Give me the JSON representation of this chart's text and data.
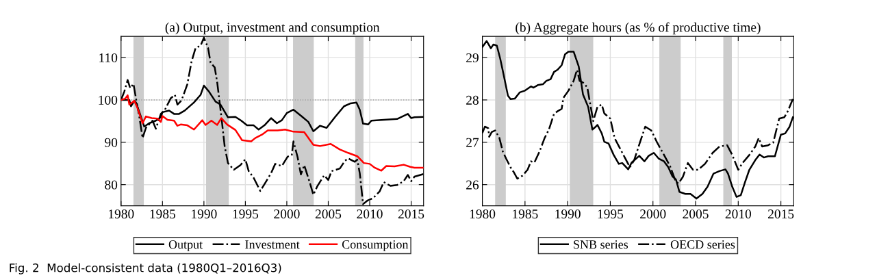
{
  "chart_data": [
    {
      "type": "line",
      "title": "(a) Output, investment and consumption",
      "xlim": [
        1980,
        2016.5
      ],
      "ylim": [
        75,
        115
      ],
      "xticks": [
        1980,
        1985,
        1990,
        1995,
        2000,
        2005,
        2010,
        2015
      ],
      "yticks": [
        80,
        90,
        100,
        110
      ],
      "grid": true,
      "legend": "bottom",
      "marker": "none",
      "annotations": [
        "Fig. 2  Model-consistent data (1980Q1–2016Q3)"
      ],
      "ref_lines": [
        {
          "axis": "y",
          "value": 100,
          "label": null,
          "color": "#a0a0a0",
          "line_style": "dotted"
        }
      ],
      "bands": [
        {
          "axis": "x",
          "from": 1981.5,
          "to": 1982.75,
          "label": null,
          "color": "#cccccc"
        },
        {
          "axis": "x",
          "from": 1990.25,
          "to": 1993,
          "label": null,
          "color": "#cccccc"
        },
        {
          "axis": "x",
          "from": 2000.75,
          "to": 2003.25,
          "label": null,
          "color": "#cccccc"
        },
        {
          "axis": "x",
          "from": 2008.25,
          "to": 2009.25,
          "label": null,
          "color": "#cccccc"
        }
      ],
      "series": [
        {
          "name": "Output",
          "color": "#000000",
          "line_style": "solid",
          "x": [
            1980,
            1981.0,
            1981.2,
            1981.6,
            1981.8,
            1982.2,
            1982.8,
            1983.4,
            1984.2,
            1984.8,
            1985.0,
            1985.8,
            1986.4,
            1987.0,
            1987.7,
            1988.8,
            1989.6,
            1990.0,
            1990.6,
            1991.4,
            1992.0,
            1992.9,
            1993.8,
            1994.5,
            1995.2,
            1996.0,
            1996.6,
            1997.3,
            1998.1,
            1998.8,
            1999.4,
            2000.0,
            2000.8,
            2001.8,
            2002.6,
            2003.2,
            2004.0,
            2004.8,
            2005.8,
            2006.9,
            2007.7,
            2008.4,
            2008.8,
            2009.2,
            2009.8,
            2010.2,
            2011.7,
            2013.3,
            2014.6,
            2015.0,
            2015.4,
            2016.5
          ],
          "values": [
            100,
            100,
            98.5,
            99.8,
            99.4,
            97.2,
            93.7,
            94.5,
            95.1,
            95.9,
            97.1,
            97.5,
            96.7,
            96.7,
            97.5,
            99.4,
            101.2,
            103.4,
            102.0,
            99.6,
            98.9,
            95.9,
            96.0,
            95.1,
            94.0,
            94.0,
            93.0,
            94.0,
            95.7,
            94.5,
            95.2,
            96.9,
            97.7,
            96.1,
            94.8,
            92.6,
            93.9,
            93.4,
            95.9,
            98.5,
            99.2,
            99.4,
            97.7,
            94.4,
            94.2,
            95.1,
            95.3,
            95.5,
            96.7,
            95.7,
            95.9,
            96.0
          ]
        },
        {
          "name": "Investment",
          "color": "#000000",
          "line_style": "dashdot",
          "x": [
            1980,
            1980.4,
            1980.8,
            1981.1,
            1981.5,
            1981.8,
            1982.2,
            1982.6,
            1983.0,
            1983.8,
            1984.2,
            1984.8,
            1985.3,
            1986.0,
            1986.5,
            1986.8,
            1987.3,
            1988.0,
            1988.5,
            1989.0,
            1989.6,
            1990.0,
            1990.5,
            1990.8,
            1991.3,
            1991.6,
            1992.1,
            1992.5,
            1992.9,
            1993.6,
            1994.4,
            1995.0,
            1995.4,
            1996.0,
            1996.8,
            1997.3,
            1998.1,
            1998.6,
            1999.4,
            2000.1,
            2000.6,
            2000.8,
            2001.3,
            2001.7,
            2002.1,
            2002.8,
            2003.2,
            2003.7,
            2004.5,
            2005.0,
            2005.4,
            2006.4,
            2007.0,
            2007.4,
            2008.2,
            2008.5,
            2008.8,
            2009.2,
            2009.7,
            2010.4,
            2011.2,
            2011.7,
            2012.5,
            2013.3,
            2014.1,
            2014.6,
            2015.0,
            2015.4,
            2016.5
          ],
          "values": [
            100,
            102.0,
            104.7,
            102.8,
            103.8,
            100.4,
            96.1,
            91.0,
            93.4,
            95.1,
            93.2,
            96.7,
            97.7,
            100.4,
            101.2,
            98.9,
            99.9,
            103.7,
            109.0,
            112.3,
            112.8,
            114.7,
            112.3,
            108.8,
            107.7,
            104.2,
            96.1,
            89.1,
            85.1,
            83.5,
            84.6,
            86.0,
            83.2,
            81.6,
            78.5,
            80.1,
            82.7,
            84.9,
            84.4,
            86.6,
            87.0,
            90.2,
            86.5,
            82.4,
            84.6,
            80.3,
            77.6,
            79.7,
            82.2,
            81.1,
            83.2,
            83.8,
            85.6,
            86.2,
            85.4,
            85.9,
            82.7,
            75.4,
            76.2,
            76.8,
            78.4,
            80.6,
            79.7,
            79.9,
            80.8,
            82.3,
            80.8,
            81.9,
            82.5
          ]
        },
        {
          "name": "Consumption",
          "color": "#ff0000",
          "line_style": "solid",
          "x": [
            1980,
            1980.5,
            1980.8,
            1981.0,
            1981.6,
            1982.0,
            1982.6,
            1983.0,
            1983.7,
            1984.4,
            1984.8,
            1985.0,
            1985.6,
            1986.4,
            1986.8,
            1987.2,
            1988.0,
            1988.8,
            1989.8,
            1990.2,
            1990.9,
            1991.6,
            1992.1,
            1992.8,
            1993.8,
            1994.6,
            1995.7,
            1996.2,
            1997.0,
            1997.7,
            1998.9,
            1999.8,
            2000.8,
            2002.1,
            2002.9,
            2003.2,
            2004.0,
            2005.3,
            2006.4,
            2007.4,
            2008.5,
            2009.3,
            2010.0,
            2010.6,
            2011.4,
            2012.0,
            2013.0,
            2014.1,
            2014.9,
            2015.4,
            2016.5
          ],
          "values": [
            100,
            100.3,
            101.1,
            98.9,
            99.8,
            98.0,
            94.5,
            96.1,
            95.7,
            95.6,
            94.8,
            96.2,
            95.3,
            95.1,
            93.9,
            94.2,
            94.0,
            93.0,
            95.2,
            94.1,
            95.1,
            94.1,
            95.7,
            94.2,
            92.9,
            90.5,
            90.2,
            91.0,
            91.8,
            92.8,
            92.8,
            93.0,
            92.5,
            92.4,
            90.2,
            89.4,
            89.1,
            89.6,
            88.3,
            87.5,
            86.7,
            85.1,
            84.9,
            84.0,
            83.3,
            84.4,
            84.3,
            84.7,
            84.2,
            84.0,
            84.0
          ]
        }
      ]
    },
    {
      "type": "line",
      "title": "(b) Aggregate hours (as % of productive time)",
      "xlim": [
        1980,
        2016.5
      ],
      "ylim": [
        25.5,
        29.5
      ],
      "xticks": [
        1980,
        1985,
        1990,
        1995,
        2000,
        2005,
        2010,
        2015
      ],
      "yticks": [
        26,
        27,
        28,
        29
      ],
      "grid": true,
      "legend": "bottom",
      "marker": "none",
      "bands": [
        {
          "axis": "x",
          "from": 1981.5,
          "to": 1982.75,
          "label": null,
          "color": "#cccccc"
        },
        {
          "axis": "x",
          "from": 1990.25,
          "to": 1993,
          "label": null,
          "color": "#cccccc"
        },
        {
          "axis": "x",
          "from": 2000.75,
          "to": 2003.25,
          "label": null,
          "color": "#cccccc"
        },
        {
          "axis": "x",
          "from": 2008.25,
          "to": 2009.25,
          "label": null,
          "color": "#cccccc"
        }
      ],
      "series": [
        {
          "name": "SNB series",
          "color": "#000000",
          "line_style": "solid",
          "x": [
            1980,
            1980.5,
            1981.0,
            1981.3,
            1981.7,
            1982.1,
            1982.5,
            1983.0,
            1983.3,
            1983.8,
            1984.4,
            1985.0,
            1985.7,
            1986.0,
            1986.5,
            1987.1,
            1987.5,
            1988.0,
            1988.4,
            1988.8,
            1989.3,
            1989.7,
            1990.1,
            1990.7,
            1991.3,
            1991.8,
            1992.4,
            1992.9,
            1993.3,
            1993.5,
            1994.0,
            1994.3,
            1994.8,
            1995.4,
            1996.0,
            1996.4,
            1997.1,
            1997.5,
            1998.4,
            1999.0,
            1999.5,
            2000.1,
            2000.7,
            2001.3,
            2001.8,
            2002.3,
            2002.7,
            2003.1,
            2003.8,
            2004.4,
            2005.1,
            2005.8,
            2006.4,
            2007.1,
            2007.8,
            2008.5,
            2008.8,
            2009.3,
            2009.8,
            2010.3,
            2010.8,
            2011.3,
            2012.0,
            2012.5,
            2013.0,
            2013.5,
            2014.3,
            2015.0,
            2015.5,
            2016.0,
            2016.4
          ],
          "values": [
            29.25,
            29.39,
            29.22,
            29.31,
            29.28,
            28.97,
            28.59,
            28.1,
            28.02,
            28.03,
            28.18,
            28.22,
            28.32,
            28.29,
            28.35,
            28.37,
            28.45,
            28.49,
            28.66,
            28.71,
            28.82,
            29.08,
            29.14,
            29.14,
            28.79,
            28.13,
            27.84,
            27.3,
            27.37,
            27.41,
            27.21,
            27.01,
            26.97,
            26.7,
            26.49,
            26.51,
            26.36,
            26.52,
            26.68,
            26.55,
            26.68,
            26.75,
            26.61,
            26.55,
            26.41,
            26.19,
            26.12,
            25.83,
            25.78,
            25.78,
            25.67,
            25.78,
            25.95,
            26.26,
            26.32,
            26.36,
            26.26,
            25.95,
            25.71,
            25.75,
            26.06,
            26.35,
            26.58,
            26.71,
            26.64,
            26.67,
            26.67,
            27.18,
            27.21,
            27.36,
            27.59
          ]
        },
        {
          "name": "OECD series",
          "color": "#000000",
          "line_style": "dashdot",
          "x": [
            1980,
            1980.3,
            1980.7,
            1980.8,
            1981.1,
            1981.5,
            1982.0,
            1982.4,
            1982.8,
            1983.3,
            1983.7,
            1984.1,
            1984.7,
            1985.3,
            1985.7,
            1986.1,
            1986.7,
            1987.3,
            1987.8,
            1988.4,
            1988.8,
            1989.3,
            1989.5,
            1990.1,
            1990.7,
            1991.1,
            1991.4,
            1991.8,
            1992.3,
            1993.0,
            1993.5,
            1994.0,
            1994.3,
            1995.0,
            1995.5,
            1996.1,
            1996.7,
            1997.3,
            1997.8,
            1998.5,
            1999.1,
            1999.8,
            2000.5,
            2001.3,
            2002.0,
            2002.7,
            2003.0,
            2003.5,
            2004.1,
            2004.7,
            2005.3,
            2006.1,
            2007.0,
            2007.8,
            2008.7,
            2009.3,
            2010.0,
            2010.5,
            2011.3,
            2012.0,
            2012.4,
            2012.8,
            2013.5,
            2014.1,
            2014.8,
            2015.4,
            2015.8,
            2016.4
          ],
          "values": [
            27.22,
            27.37,
            27.33,
            27.13,
            27.24,
            27.28,
            27.1,
            26.78,
            26.61,
            26.41,
            26.29,
            26.14,
            26.21,
            26.35,
            26.55,
            26.52,
            26.78,
            27.1,
            27.3,
            27.67,
            27.73,
            27.79,
            28.05,
            28.22,
            28.45,
            28.71,
            28.45,
            28.41,
            28.3,
            27.5,
            27.84,
            27.89,
            27.68,
            27.56,
            27.1,
            26.87,
            26.64,
            26.41,
            26.58,
            27.01,
            27.37,
            27.28,
            26.99,
            26.7,
            26.44,
            26.06,
            26.03,
            26.18,
            26.51,
            26.35,
            26.35,
            26.49,
            26.75,
            26.9,
            26.93,
            26.7,
            26.35,
            26.51,
            26.7,
            26.9,
            27.1,
            26.9,
            26.93,
            26.99,
            27.56,
            27.59,
            27.73,
            28.02
          ]
        }
      ]
    }
  ]
}
